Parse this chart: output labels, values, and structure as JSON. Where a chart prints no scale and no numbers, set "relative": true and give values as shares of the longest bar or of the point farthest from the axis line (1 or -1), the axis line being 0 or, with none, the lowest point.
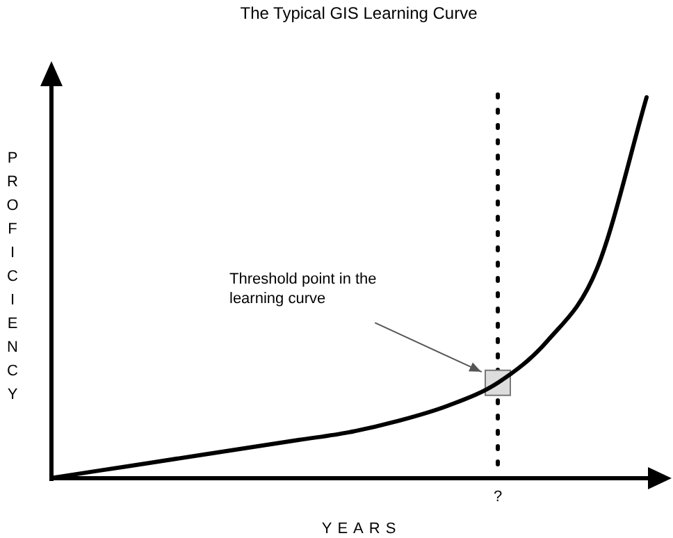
{
  "chart_data": {
    "type": "line",
    "title": "The Typical GIS Learning Curve",
    "xlabel": "YEARS",
    "ylabel": "PROFICIENCY",
    "relative": true,
    "categories": [
      null,
      null,
      null,
      null,
      null,
      null,
      null,
      null,
      null,
      null,
      null,
      null,
      null
    ],
    "series": [
      {
        "color": "#000000",
        "values": [
          0,
          0.02,
          0.04,
          0.06,
          0.08,
          0.1,
          0.12,
          0.15,
          0.19,
          0.25,
          0.36,
          0.55,
          1
        ]
      }
    ],
    "annotations": [
      "Threshold point in the learning curve",
      "?"
    ],
    "marker": "none",
    "line_style": "solid",
    "grid": false,
    "legend": false
  }
}
